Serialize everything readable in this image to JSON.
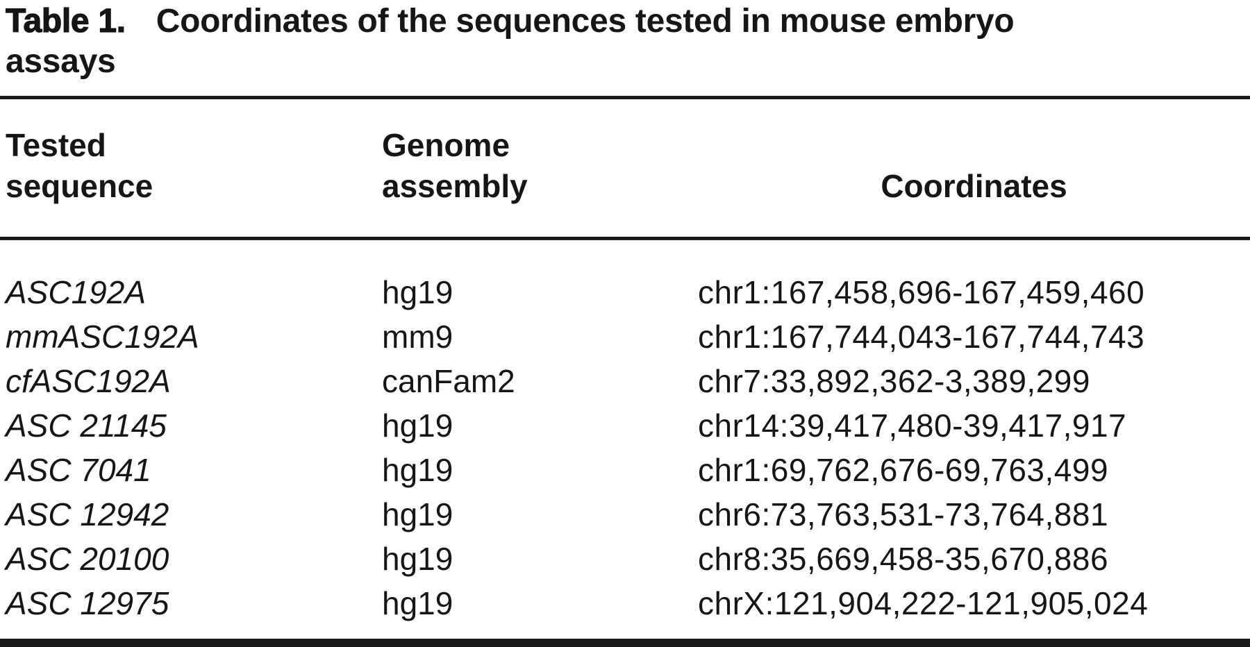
{
  "colors": {
    "background": "#ffffff",
    "text": "#161616",
    "rule": "#1a1a1a"
  },
  "title": {
    "prefix": "Table 1.",
    "line1": "Coordinates of the sequences tested in mouse embryo",
    "line2": "assays"
  },
  "table": {
    "headers": [
      "Tested\nsequence",
      "Genome\nassembly",
      "Coordinates"
    ],
    "rows": [
      {
        "sequence": "ASC192A",
        "assembly": "hg19",
        "coordinates": "chr1:167,458,696-167,459,460"
      },
      {
        "sequence": "mmASC192A",
        "assembly": "mm9",
        "coordinates": "chr1:167,744,043-167,744,743"
      },
      {
        "sequence": "cfASC192A",
        "assembly": "canFam2",
        "coordinates": "chr7:33,892,362-3,389,299"
      },
      {
        "sequence": "ASC 21145",
        "assembly": "hg19",
        "coordinates": "chr14:39,417,480-39,417,917"
      },
      {
        "sequence": "ASC 7041",
        "assembly": "hg19",
        "coordinates": "chr1:69,762,676-69,763,499"
      },
      {
        "sequence": "ASC 12942",
        "assembly": "hg19",
        "coordinates": "chr6:73,763,531-73,764,881"
      },
      {
        "sequence": "ASC 20100",
        "assembly": "hg19",
        "coordinates": "chr8:35,669,458-35,670,886"
      },
      {
        "sequence": "ASC 12975",
        "assembly": "hg19",
        "coordinates": "chrX:121,904,222-121,905,024"
      }
    ]
  }
}
